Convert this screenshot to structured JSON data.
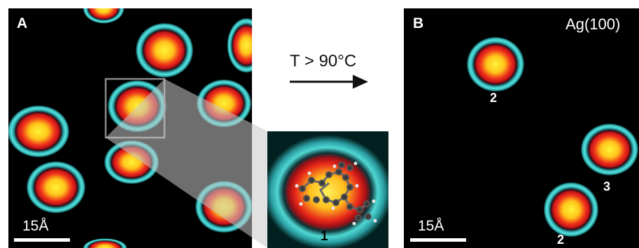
{
  "panel_a": {
    "label": "A",
    "scale_text": "15Å"
  },
  "panel_b": {
    "label": "B",
    "substrate": "Ag(100)",
    "scale_text": "15Å",
    "molecule_labels": [
      "2",
      "3",
      "2"
    ]
  },
  "middle": {
    "condition": "T > 90°C",
    "inset_label": "1"
  },
  "colors": {
    "background": "#000000",
    "halo": "#3fd3d0",
    "core_red": "#e81e12",
    "core_yellow": "#ffe21c",
    "arrow": "#111111"
  }
}
